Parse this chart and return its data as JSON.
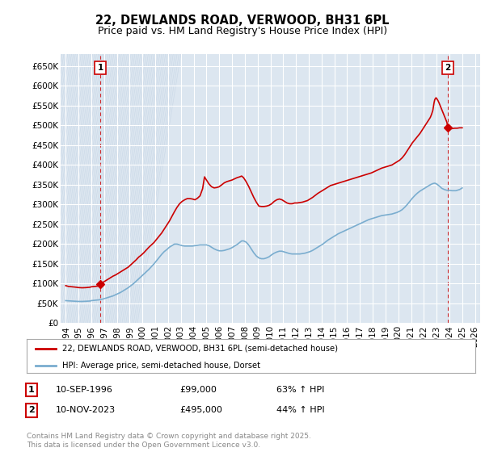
{
  "title": "22, DEWLANDS ROAD, VERWOOD, BH31 6PL",
  "subtitle": "Price paid vs. HM Land Registry's House Price Index (HPI)",
  "ylim": [
    0,
    680000
  ],
  "yticks": [
    0,
    50000,
    100000,
    150000,
    200000,
    250000,
    300000,
    350000,
    400000,
    450000,
    500000,
    550000,
    600000,
    650000
  ],
  "ytick_labels": [
    "£0",
    "£50K",
    "£100K",
    "£150K",
    "£200K",
    "£250K",
    "£300K",
    "£350K",
    "£400K",
    "£450K",
    "£500K",
    "£550K",
    "£600K",
    "£650K"
  ],
  "xlim_start": 1993.6,
  "xlim_end": 2026.4,
  "background_color": "#ffffff",
  "plot_bg_color": "#dce6f0",
  "grid_color": "#ffffff",
  "hatch_color": "#c8d4e0",
  "title_fontsize": 10.5,
  "subtitle_fontsize": 9,
  "tick_fontsize": 7.5,
  "red_color": "#cc0000",
  "blue_color": "#7aadcf",
  "legend_label_red": "22, DEWLANDS ROAD, VERWOOD, BH31 6PL (semi-detached house)",
  "legend_label_blue": "HPI: Average price, semi-detached house, Dorset",
  "annotation1_date": "10-SEP-1996",
  "annotation1_price": "£99,000",
  "annotation1_hpi": "63% ↑ HPI",
  "annotation2_date": "10-NOV-2023",
  "annotation2_price": "£495,000",
  "annotation2_hpi": "44% ↑ HPI",
  "footer": "Contains HM Land Registry data © Crown copyright and database right 2025.\nThis data is licensed under the Open Government Licence v3.0.",
  "sale1_x": 1996.7,
  "sale1_y": 99000,
  "sale2_x": 2023.87,
  "sale2_y": 495000,
  "hpi_red_points": [
    [
      1994.0,
      95000
    ],
    [
      1994.2,
      93000
    ],
    [
      1994.5,
      92000
    ],
    [
      1994.8,
      91000
    ],
    [
      1995.0,
      90000
    ],
    [
      1995.3,
      89500
    ],
    [
      1995.6,
      90000
    ],
    [
      1995.9,
      91000
    ],
    [
      1996.0,
      92000
    ],
    [
      1996.3,
      93000
    ],
    [
      1996.6,
      94000
    ],
    [
      1996.7,
      99000
    ],
    [
      1996.9,
      103000
    ],
    [
      1997.1,
      107000
    ],
    [
      1997.3,
      111000
    ],
    [
      1997.5,
      115000
    ],
    [
      1997.7,
      119000
    ],
    [
      1997.9,
      122000
    ],
    [
      1998.1,
      126000
    ],
    [
      1998.3,
      130000
    ],
    [
      1998.5,
      134000
    ],
    [
      1998.7,
      138000
    ],
    [
      1998.9,
      142000
    ],
    [
      1999.1,
      148000
    ],
    [
      1999.3,
      154000
    ],
    [
      1999.5,
      160000
    ],
    [
      1999.7,
      167000
    ],
    [
      1999.9,
      172000
    ],
    [
      2000.1,
      178000
    ],
    [
      2000.3,
      185000
    ],
    [
      2000.5,
      192000
    ],
    [
      2000.7,
      198000
    ],
    [
      2000.9,
      204000
    ],
    [
      2001.1,
      212000
    ],
    [
      2001.3,
      220000
    ],
    [
      2001.5,
      228000
    ],
    [
      2001.7,
      238000
    ],
    [
      2001.9,
      248000
    ],
    [
      2002.1,
      258000
    ],
    [
      2002.3,
      270000
    ],
    [
      2002.5,
      282000
    ],
    [
      2002.7,
      293000
    ],
    [
      2002.9,
      302000
    ],
    [
      2003.1,
      308000
    ],
    [
      2003.3,
      312000
    ],
    [
      2003.5,
      315000
    ],
    [
      2003.7,
      315000
    ],
    [
      2003.9,
      314000
    ],
    [
      2004.1,
      312000
    ],
    [
      2004.3,
      316000
    ],
    [
      2004.5,
      322000
    ],
    [
      2004.7,
      340000
    ],
    [
      2004.85,
      370000
    ],
    [
      2005.0,
      362000
    ],
    [
      2005.2,
      352000
    ],
    [
      2005.4,
      345000
    ],
    [
      2005.6,
      342000
    ],
    [
      2005.8,
      343000
    ],
    [
      2006.0,
      345000
    ],
    [
      2006.2,
      350000
    ],
    [
      2006.4,
      355000
    ],
    [
      2006.6,
      358000
    ],
    [
      2006.8,
      360000
    ],
    [
      2007.0,
      362000
    ],
    [
      2007.2,
      365000
    ],
    [
      2007.4,
      368000
    ],
    [
      2007.6,
      370000
    ],
    [
      2007.75,
      372000
    ],
    [
      2007.9,
      368000
    ],
    [
      2008.1,
      358000
    ],
    [
      2008.3,
      346000
    ],
    [
      2008.5,
      332000
    ],
    [
      2008.7,
      318000
    ],
    [
      2008.9,
      306000
    ],
    [
      2009.1,
      296000
    ],
    [
      2009.3,
      295000
    ],
    [
      2009.5,
      295000
    ],
    [
      2009.7,
      296000
    ],
    [
      2009.9,
      298000
    ],
    [
      2010.1,
      302000
    ],
    [
      2010.3,
      308000
    ],
    [
      2010.5,
      312000
    ],
    [
      2010.7,
      314000
    ],
    [
      2010.9,
      312000
    ],
    [
      2011.1,
      308000
    ],
    [
      2011.3,
      304000
    ],
    [
      2011.5,
      302000
    ],
    [
      2011.7,
      302000
    ],
    [
      2011.9,
      304000
    ],
    [
      2012.1,
      304000
    ],
    [
      2012.3,
      305000
    ],
    [
      2012.5,
      306000
    ],
    [
      2012.7,
      308000
    ],
    [
      2012.9,
      310000
    ],
    [
      2013.1,
      314000
    ],
    [
      2013.3,
      318000
    ],
    [
      2013.5,
      323000
    ],
    [
      2013.7,
      328000
    ],
    [
      2013.9,
      332000
    ],
    [
      2014.1,
      336000
    ],
    [
      2014.3,
      340000
    ],
    [
      2014.5,
      344000
    ],
    [
      2014.7,
      348000
    ],
    [
      2014.9,
      350000
    ],
    [
      2015.1,
      352000
    ],
    [
      2015.3,
      354000
    ],
    [
      2015.5,
      356000
    ],
    [
      2015.7,
      358000
    ],
    [
      2015.9,
      360000
    ],
    [
      2016.1,
      362000
    ],
    [
      2016.3,
      364000
    ],
    [
      2016.5,
      366000
    ],
    [
      2016.7,
      368000
    ],
    [
      2016.9,
      370000
    ],
    [
      2017.1,
      372000
    ],
    [
      2017.3,
      374000
    ],
    [
      2017.5,
      376000
    ],
    [
      2017.7,
      378000
    ],
    [
      2017.9,
      380000
    ],
    [
      2018.1,
      383000
    ],
    [
      2018.3,
      386000
    ],
    [
      2018.5,
      389000
    ],
    [
      2018.7,
      392000
    ],
    [
      2018.9,
      394000
    ],
    [
      2019.1,
      396000
    ],
    [
      2019.3,
      398000
    ],
    [
      2019.5,
      400000
    ],
    [
      2019.7,
      404000
    ],
    [
      2019.9,
      408000
    ],
    [
      2020.1,
      412000
    ],
    [
      2020.3,
      418000
    ],
    [
      2020.5,
      426000
    ],
    [
      2020.7,
      436000
    ],
    [
      2020.9,
      446000
    ],
    [
      2021.1,
      456000
    ],
    [
      2021.3,
      464000
    ],
    [
      2021.5,
      472000
    ],
    [
      2021.7,
      480000
    ],
    [
      2021.9,
      490000
    ],
    [
      2022.1,
      500000
    ],
    [
      2022.3,
      510000
    ],
    [
      2022.5,
      520000
    ],
    [
      2022.6,
      528000
    ],
    [
      2022.7,
      538000
    ],
    [
      2022.75,
      548000
    ],
    [
      2022.8,
      558000
    ],
    [
      2022.85,
      565000
    ],
    [
      2022.9,
      568000
    ],
    [
      2022.95,
      570000
    ],
    [
      2023.0,
      568000
    ],
    [
      2023.1,
      563000
    ],
    [
      2023.2,
      556000
    ],
    [
      2023.3,
      548000
    ],
    [
      2023.4,
      540000
    ],
    [
      2023.5,
      532000
    ],
    [
      2023.6,
      524000
    ],
    [
      2023.7,
      516000
    ],
    [
      2023.8,
      508000
    ],
    [
      2023.87,
      495000
    ],
    [
      2023.9,
      492000
    ],
    [
      2024.0,
      492000
    ],
    [
      2024.2,
      492000
    ],
    [
      2024.4,
      493000
    ],
    [
      2024.6,
      493000
    ],
    [
      2024.8,
      494000
    ],
    [
      2025.0,
      494000
    ]
  ],
  "hpi_blue_points": [
    [
      1994.0,
      57000
    ],
    [
      1994.2,
      56500
    ],
    [
      1994.5,
      56000
    ],
    [
      1994.8,
      55500
    ],
    [
      1995.0,
      55000
    ],
    [
      1995.3,
      55000
    ],
    [
      1995.6,
      55500
    ],
    [
      1995.9,
      56000
    ],
    [
      1996.0,
      57000
    ],
    [
      1996.3,
      58000
    ],
    [
      1996.6,
      59000
    ],
    [
      1996.9,
      61000
    ],
    [
      1997.1,
      63000
    ],
    [
      1997.3,
      65000
    ],
    [
      1997.5,
      67000
    ],
    [
      1997.7,
      69000
    ],
    [
      1997.9,
      72000
    ],
    [
      1998.1,
      75000
    ],
    [
      1998.3,
      78000
    ],
    [
      1998.5,
      82000
    ],
    [
      1998.7,
      86000
    ],
    [
      1998.9,
      90000
    ],
    [
      1999.1,
      95000
    ],
    [
      1999.3,
      100000
    ],
    [
      1999.5,
      106000
    ],
    [
      1999.7,
      112000
    ],
    [
      1999.9,
      118000
    ],
    [
      2000.1,
      124000
    ],
    [
      2000.3,
      130000
    ],
    [
      2000.5,
      136000
    ],
    [
      2000.7,
      143000
    ],
    [
      2000.9,
      150000
    ],
    [
      2001.1,
      158000
    ],
    [
      2001.3,
      166000
    ],
    [
      2001.5,
      174000
    ],
    [
      2001.7,
      181000
    ],
    [
      2001.9,
      186000
    ],
    [
      2002.1,
      192000
    ],
    [
      2002.3,
      196000
    ],
    [
      2002.5,
      200000
    ],
    [
      2002.7,
      200000
    ],
    [
      2002.9,
      198000
    ],
    [
      2003.1,
      196000
    ],
    [
      2003.3,
      195000
    ],
    [
      2003.5,
      195000
    ],
    [
      2003.7,
      195000
    ],
    [
      2003.9,
      195000
    ],
    [
      2004.1,
      196000
    ],
    [
      2004.3,
      197000
    ],
    [
      2004.5,
      198000
    ],
    [
      2004.7,
      198000
    ],
    [
      2004.9,
      198000
    ],
    [
      2005.0,
      198000
    ],
    [
      2005.2,
      196000
    ],
    [
      2005.4,
      192000
    ],
    [
      2005.6,
      188000
    ],
    [
      2005.8,
      185000
    ],
    [
      2006.0,
      183000
    ],
    [
      2006.2,
      183000
    ],
    [
      2006.4,
      184000
    ],
    [
      2006.6,
      186000
    ],
    [
      2006.8,
      188000
    ],
    [
      2007.0,
      191000
    ],
    [
      2007.2,
      195000
    ],
    [
      2007.4,
      199000
    ],
    [
      2007.6,
      204000
    ],
    [
      2007.75,
      208000
    ],
    [
      2007.9,
      208000
    ],
    [
      2008.1,
      205000
    ],
    [
      2008.3,
      198000
    ],
    [
      2008.5,
      188000
    ],
    [
      2008.7,
      178000
    ],
    [
      2008.9,
      170000
    ],
    [
      2009.1,
      165000
    ],
    [
      2009.3,
      163000
    ],
    [
      2009.5,
      163000
    ],
    [
      2009.7,
      165000
    ],
    [
      2009.9,
      168000
    ],
    [
      2010.1,
      173000
    ],
    [
      2010.3,
      177000
    ],
    [
      2010.5,
      180000
    ],
    [
      2010.7,
      182000
    ],
    [
      2010.9,
      182000
    ],
    [
      2011.1,
      180000
    ],
    [
      2011.3,
      178000
    ],
    [
      2011.5,
      176000
    ],
    [
      2011.7,
      175000
    ],
    [
      2011.9,
      175000
    ],
    [
      2012.1,
      175000
    ],
    [
      2012.3,
      175000
    ],
    [
      2012.5,
      176000
    ],
    [
      2012.7,
      177000
    ],
    [
      2012.9,
      179000
    ],
    [
      2013.1,
      181000
    ],
    [
      2013.3,
      184000
    ],
    [
      2013.5,
      188000
    ],
    [
      2013.7,
      192000
    ],
    [
      2013.9,
      196000
    ],
    [
      2014.1,
      200000
    ],
    [
      2014.3,
      205000
    ],
    [
      2014.5,
      210000
    ],
    [
      2014.7,
      214000
    ],
    [
      2014.9,
      218000
    ],
    [
      2015.1,
      222000
    ],
    [
      2015.3,
      226000
    ],
    [
      2015.5,
      229000
    ],
    [
      2015.7,
      232000
    ],
    [
      2015.9,
      235000
    ],
    [
      2016.1,
      238000
    ],
    [
      2016.3,
      241000
    ],
    [
      2016.5,
      244000
    ],
    [
      2016.7,
      247000
    ],
    [
      2016.9,
      250000
    ],
    [
      2017.1,
      253000
    ],
    [
      2017.3,
      256000
    ],
    [
      2017.5,
      259000
    ],
    [
      2017.7,
      262000
    ],
    [
      2017.9,
      264000
    ],
    [
      2018.1,
      266000
    ],
    [
      2018.3,
      268000
    ],
    [
      2018.5,
      270000
    ],
    [
      2018.7,
      272000
    ],
    [
      2018.9,
      273000
    ],
    [
      2019.1,
      274000
    ],
    [
      2019.3,
      275000
    ],
    [
      2019.5,
      276000
    ],
    [
      2019.7,
      278000
    ],
    [
      2019.9,
      280000
    ],
    [
      2020.1,
      283000
    ],
    [
      2020.3,
      287000
    ],
    [
      2020.5,
      293000
    ],
    [
      2020.7,
      300000
    ],
    [
      2020.9,
      308000
    ],
    [
      2021.1,
      316000
    ],
    [
      2021.3,
      323000
    ],
    [
      2021.5,
      329000
    ],
    [
      2021.7,
      334000
    ],
    [
      2021.9,
      338000
    ],
    [
      2022.1,
      342000
    ],
    [
      2022.3,
      346000
    ],
    [
      2022.5,
      350000
    ],
    [
      2022.7,
      353000
    ],
    [
      2022.85,
      354000
    ],
    [
      2023.0,
      352000
    ],
    [
      2023.2,
      347000
    ],
    [
      2023.4,
      341000
    ],
    [
      2023.6,
      338000
    ],
    [
      2023.8,
      336000
    ],
    [
      2024.0,
      336000
    ],
    [
      2024.2,
      335000
    ],
    [
      2024.4,
      335000
    ],
    [
      2024.5,
      335000
    ],
    [
      2024.6,
      336000
    ],
    [
      2024.7,
      337000
    ],
    [
      2024.8,
      338000
    ],
    [
      2024.9,
      340000
    ],
    [
      2025.0,
      342000
    ]
  ]
}
